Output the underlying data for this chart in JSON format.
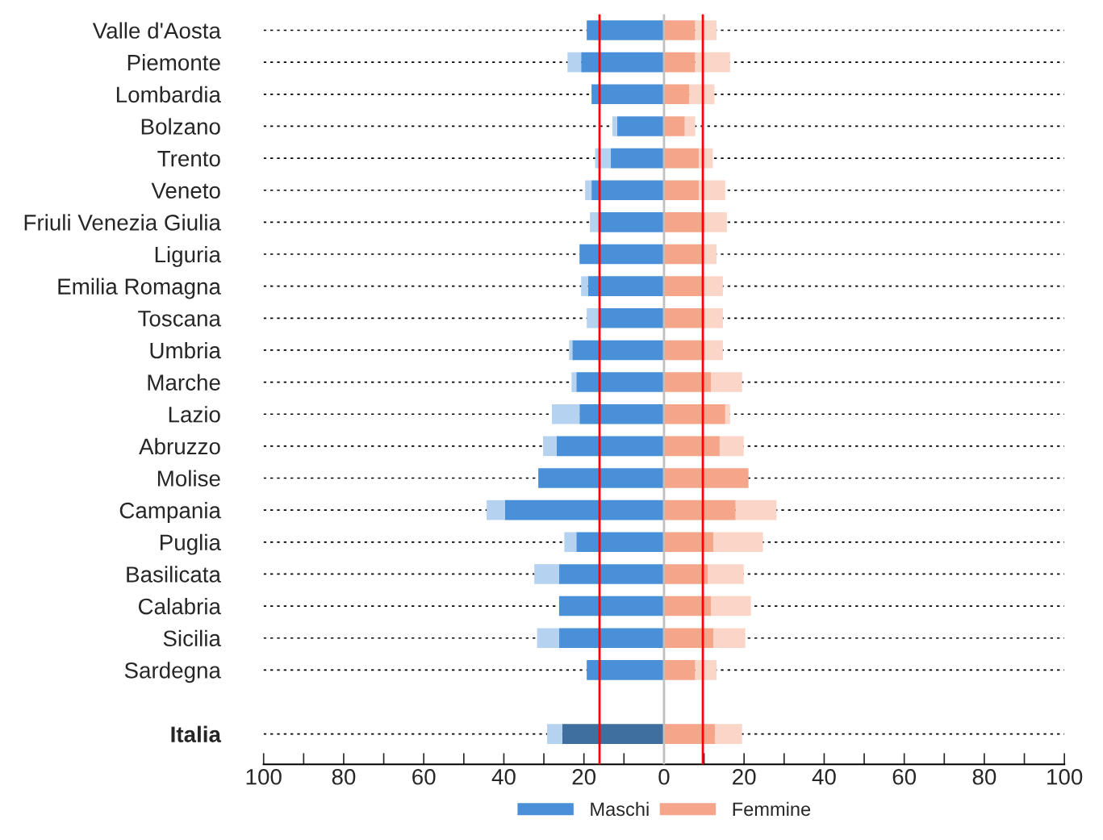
{
  "chart_data": {
    "type": "bar",
    "orientation": "horizontal",
    "stacked": true,
    "categories": [
      "Valle d'Aosta",
      "Piemonte",
      "Lombardia",
      "Bolzano",
      "Trento",
      "Veneto",
      "Friuli Venezia Giulia",
      "Liguria",
      "Emilia Romagna",
      "Toscana",
      "Umbria",
      "Marche",
      "Lazio",
      "Abruzzo",
      "Molise",
      "Campania",
      "Puglia",
      "Basilicata",
      "Calabria",
      "Sicilia",
      "Sardegna",
      null,
      "Italia"
    ],
    "series": [
      {
        "name": "Maschi",
        "color": "#4a90d9",
        "colors": [
          "#4a90d9",
          "#4a90d9",
          "#4a90d9",
          "#4a90d9",
          "#4a90d9",
          "#4a90d9",
          "#4a90d9",
          "#4a90d9",
          "#4a90d9",
          "#4a90d9",
          "#4a90d9",
          "#4a90d9",
          "#4a90d9",
          "#4a90d9",
          "#4a90d9",
          "#4a90d9",
          "#4a90d9",
          "#4a90d9",
          "#4a90d9",
          "#4a90d9",
          "#4a90d9",
          "#4a90d9",
          "#3f6f9f"
        ],
        "values": [
          -19.3,
          -20.7,
          -18.1,
          -11.7,
          -13.3,
          -18.1,
          -16.2,
          -21.1,
          -19.0,
          -16.0,
          -22.9,
          -21.9,
          -21.1,
          -26.8,
          -31.4,
          -39.7,
          -21.9,
          -26.2,
          -26.2,
          -26.2,
          -19.3,
          null,
          -25.4
        ]
      },
      {
        "color": "#b5d2f0",
        "values": [
          null,
          -3.4,
          null,
          -1.2,
          -3.9,
          -1.6,
          -2.3,
          null,
          -1.7,
          -3.3,
          -0.8,
          -1.2,
          -6.9,
          -3.4,
          null,
          -4.6,
          -3.0,
          -6.2,
          null,
          -5.5,
          null,
          null,
          -3.8
        ]
      },
      {
        "name": "Femmine",
        "color": "#f4a58a",
        "values": [
          7.8,
          7.8,
          6.3,
          5.2,
          8.7,
          8.7,
          10.2,
          9.8,
          9.8,
          10.2,
          10.2,
          11.7,
          15.3,
          13.9,
          21.1,
          17.9,
          12.3,
          10.9,
          11.7,
          12.3,
          7.8,
          null,
          12.7
        ]
      },
      {
        "color": "#fbd5c7",
        "values": [
          5.3,
          8.7,
          6.3,
          2.6,
          3.5,
          6.6,
          5.5,
          3.3,
          4.9,
          4.5,
          4.5,
          7.8,
          1.2,
          6.0,
          null,
          10.2,
          12.4,
          9.0,
          10.0,
          8.0,
          5.3,
          null,
          6.8
        ]
      }
    ],
    "xlim": [
      -100,
      100
    ],
    "xticks": [
      {
        "value": -100,
        "label": "100"
      },
      {
        "value": -90,
        "label": null
      },
      {
        "value": -80,
        "label": "80"
      },
      {
        "value": -70,
        "label": null
      },
      {
        "value": -60,
        "label": "60"
      },
      {
        "value": -50,
        "label": null
      },
      {
        "value": -40,
        "label": "40"
      },
      {
        "value": -30,
        "label": null
      },
      {
        "value": -20,
        "label": "20"
      },
      {
        "value": -10,
        "label": null
      },
      0,
      {
        "value": 10,
        "label": null
      },
      20,
      {
        "value": 30,
        "label": null
      },
      40,
      {
        "value": 50,
        "label": null
      },
      60,
      {
        "value": 70,
        "label": null
      },
      80,
      {
        "value": 90,
        "label": null
      },
      100
    ],
    "ref_lines": [
      {
        "axis": "x",
        "value": 0,
        "color": "#bfbfbf"
      },
      {
        "axis": "x",
        "value": -16.1,
        "color": "#ff0000"
      },
      {
        "axis": "x",
        "value": 9.7,
        "color": "#ff0000"
      }
    ],
    "grid": "y",
    "legend": "bottom"
  }
}
